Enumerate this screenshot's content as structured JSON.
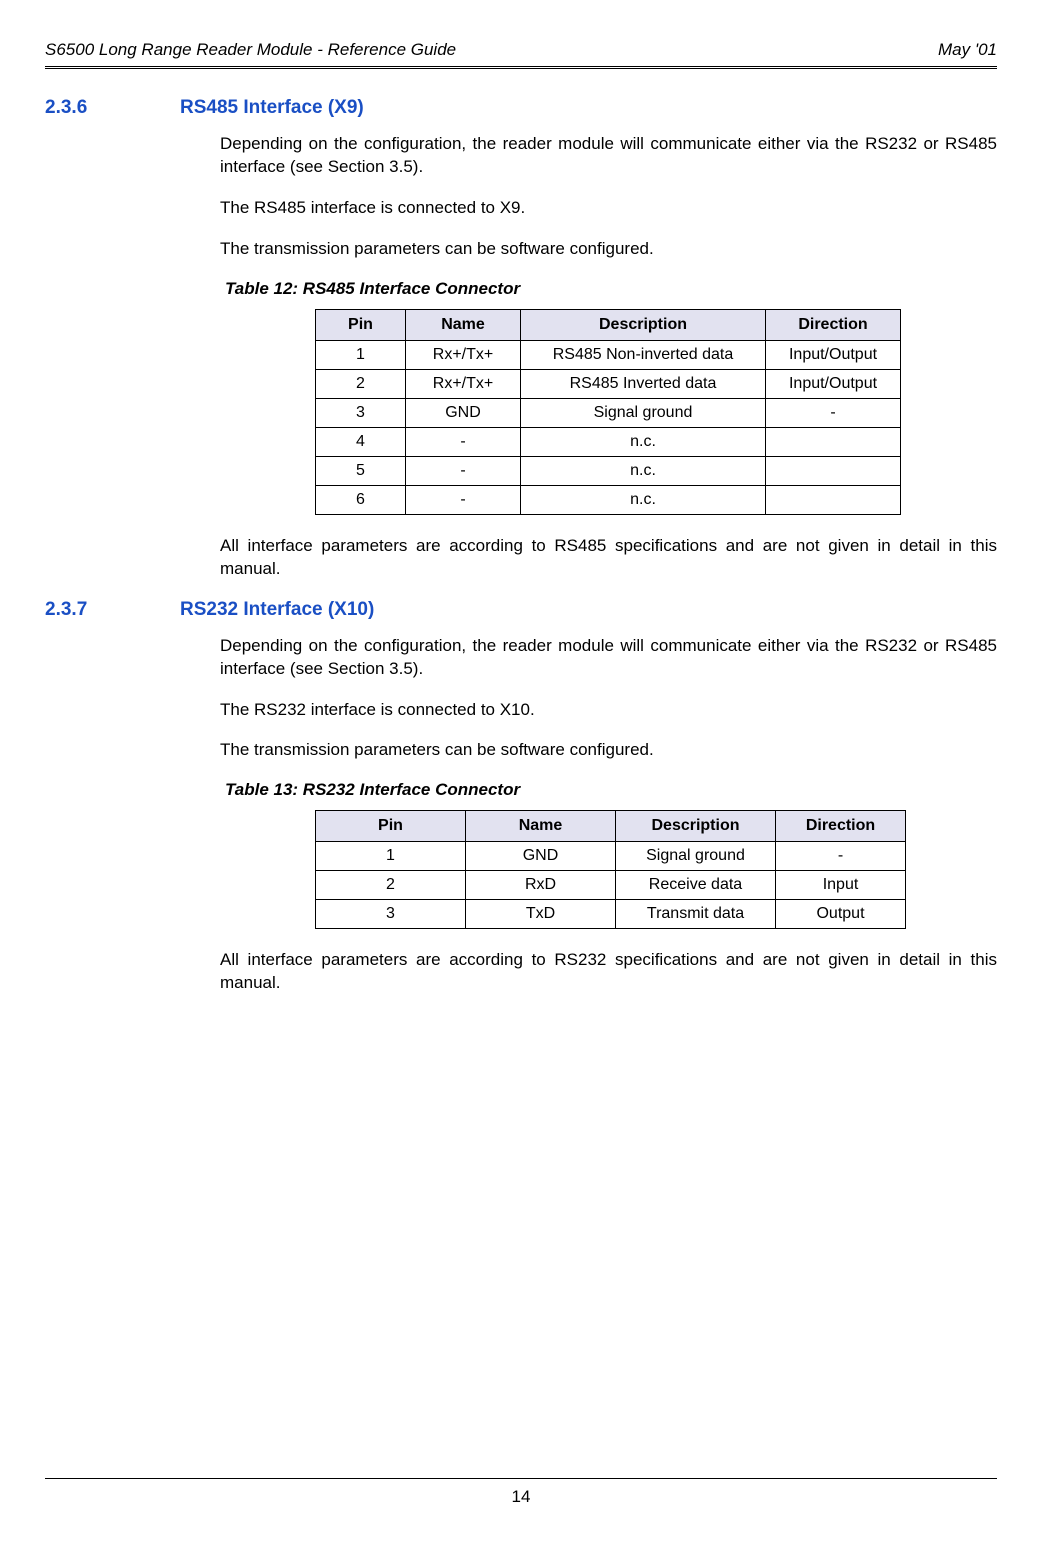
{
  "header": {
    "left": "S6500 Long Range Reader Module - Reference Guide",
    "right": "May '01"
  },
  "sectionA": {
    "num": "2.3.6",
    "title": "RS485 Interface (X9)",
    "p1": "Depending on the configuration, the reader module will communicate either via the RS232 or RS485 interface (see Section 3.5).",
    "p2": "The RS485 interface is connected to X9.",
    "p3": "The transmission parameters can be software configured.",
    "tableCaption": "Table 12: RS485 Interface Connector",
    "table": {
      "headers": [
        "Pin",
        "Name",
        "Description",
        "Direction"
      ],
      "rows": [
        [
          "1",
          "Rx+/Tx+",
          "RS485 Non-inverted data",
          "Input/Output"
        ],
        [
          "2",
          "Rx+/Tx+",
          "RS485 Inverted data",
          "Input/Output"
        ],
        [
          "3",
          "GND",
          "Signal ground",
          "-"
        ],
        [
          "4",
          "-",
          "n.c.",
          ""
        ],
        [
          "5",
          "-",
          "n.c.",
          ""
        ],
        [
          "6",
          "-",
          "n.c.",
          ""
        ]
      ]
    },
    "p4": "All interface parameters are according to RS485 specifications and are not given in detail in this manual."
  },
  "sectionB": {
    "num": "2.3.7",
    "title": "RS232 Interface (X10)",
    "p1": "Depending on the configuration, the reader module will communicate either via the RS232 or RS485 interface (see Section 3.5).",
    "p2": "The RS232 interface is connected to X10.",
    "p3": "The transmission parameters can be software configured.",
    "tableCaption": "Table 13: RS232 Interface Connector",
    "table": {
      "headers": [
        "Pin",
        "Name",
        "Description",
        "Direction"
      ],
      "rows": [
        [
          "1",
          "GND",
          "Signal ground",
          "-"
        ],
        [
          "2",
          "RxD",
          "Receive data",
          "Input"
        ],
        [
          "3",
          "TxD",
          "Transmit data",
          "Output"
        ]
      ]
    },
    "p4": "All interface parameters are according to RS232 specifications and are not given in detail in this manual."
  },
  "footer": {
    "page": "14"
  }
}
